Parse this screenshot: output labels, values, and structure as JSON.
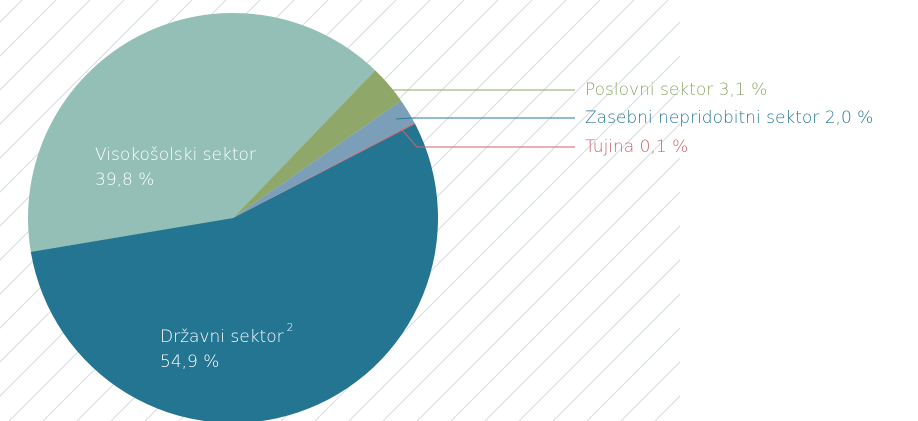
{
  "chart_data": {
    "type": "pie",
    "categories": [
      "Visokošolski sektor",
      "Poslovni sektor",
      "Zasebni nepridobitni sektor",
      "Tujina",
      "Državni sektor"
    ],
    "values": [
      39.8,
      3.1,
      2.0,
      0.1,
      54.9
    ],
    "value_labels": [
      "39,8 %",
      "3,1 %",
      "2,0 %",
      "0,1 %",
      "54,9 %"
    ],
    "colors": [
      "#93bfb7",
      "#8fa86a",
      "#7b9fb9",
      "#c9666e",
      "#247591"
    ],
    "footnote_marks": {
      "4": "2"
    }
  }
}
